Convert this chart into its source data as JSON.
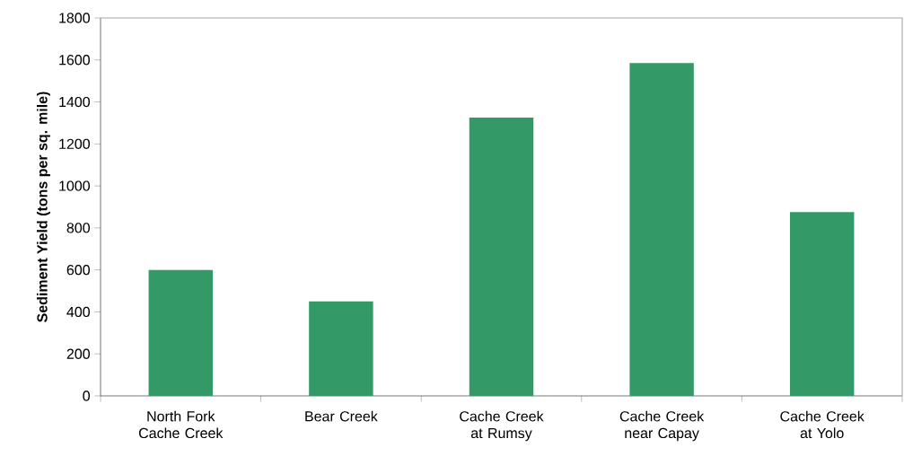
{
  "chart_data": {
    "type": "bar",
    "ylabel": "Sediment Yield (tons per sq. mile)",
    "categories": [
      "North Fork Cache Creek",
      "Bear Creek",
      "Cache Creek at Rumsy",
      "Cache Creek near Capay",
      "Cache Creek at Yolo"
    ],
    "values": [
      600,
      450,
      1325,
      1585,
      875
    ],
    "color": "#339966",
    "ylim": [
      0,
      1800
    ],
    "yticks": [
      0,
      200,
      400,
      600,
      800,
      1000,
      1200,
      1400,
      1600,
      1800
    ],
    "grid": false
  }
}
